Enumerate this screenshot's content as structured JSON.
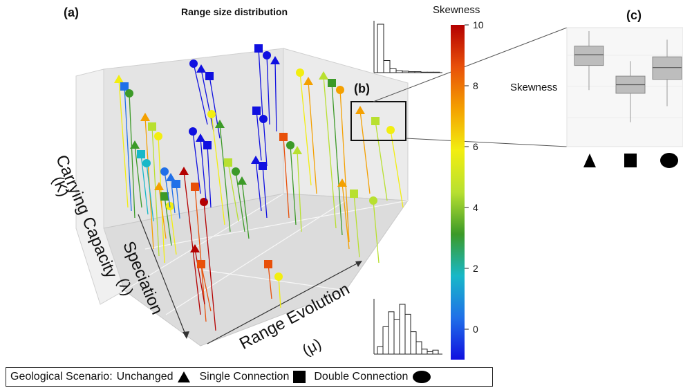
{
  "panels": {
    "a": "(a)",
    "b": "(b)",
    "c": "(c)"
  },
  "title": "Range size distribution",
  "axes3d": {
    "k_label": "Carrying Capacity",
    "k_symbol": "(K)",
    "lambda_label": "Speciation",
    "lambda_symbol": "(λ)",
    "mu_label": "Range Evolution",
    "mu_symbol": "(μ)"
  },
  "colorbar": {
    "title": "Skewness",
    "ticks": [
      "10",
      "8",
      "6",
      "4",
      "2",
      "0"
    ],
    "stops": [
      "#b40000",
      "#e8500a",
      "#f4a000",
      "#f2ee10",
      "#b8e030",
      "#3c9a28",
      "#18b8c8",
      "#2070e8",
      "#1010e0"
    ]
  },
  "panel_c": {
    "ylabel": "Skewness",
    "shapes": [
      "triangle",
      "square",
      "circle"
    ],
    "box_color": "#bdbdbd"
  },
  "legend": {
    "prefix": "Geological Scenario:",
    "unchanged": "Unchanged",
    "single": "Single Connection",
    "double": "Double Connection"
  },
  "chart_data": [
    {
      "type": "scatter",
      "title": "Range size distribution",
      "description_axes": [
        "Carrying Capacity (K)",
        "Speciation (λ)",
        "Range Evolution (μ)"
      ],
      "color_variable": "Skewness",
      "colorbar_range": [
        -1,
        10
      ],
      "series": [
        {
          "name": "Unchanged",
          "marker": "triangle"
        },
        {
          "name": "Single Connection",
          "marker": "square"
        },
        {
          "name": "Double Connection",
          "marker": "circle"
        }
      ]
    },
    {
      "type": "box",
      "ylabel": "Skewness",
      "categories": [
        "Unchanged",
        "Single Connection",
        "Double Connection"
      ],
      "boxes": [
        {
          "q1": 0.68,
          "median": 0.78,
          "q3": 0.86,
          "min": 0.45,
          "max": 1.0
        },
        {
          "q1": 0.42,
          "median": 0.5,
          "q3": 0.58,
          "min": 0.15,
          "max": 0.72
        },
        {
          "q1": 0.55,
          "median": 0.66,
          "q3": 0.76,
          "min": 0.3,
          "max": 0.92
        }
      ]
    },
    {
      "type": "bar",
      "label": "top inset histogram",
      "values": [
        1.0,
        0.25,
        0.08,
        0.04,
        0.03,
        0.02,
        0.02,
        0.01,
        0.01,
        0.01
      ]
    },
    {
      "type": "bar",
      "label": "bottom inset histogram",
      "values": [
        0.15,
        0.55,
        0.85,
        0.7,
        1.0,
        0.8,
        0.45,
        0.25,
        0.1,
        0.05,
        0.08
      ]
    }
  ]
}
